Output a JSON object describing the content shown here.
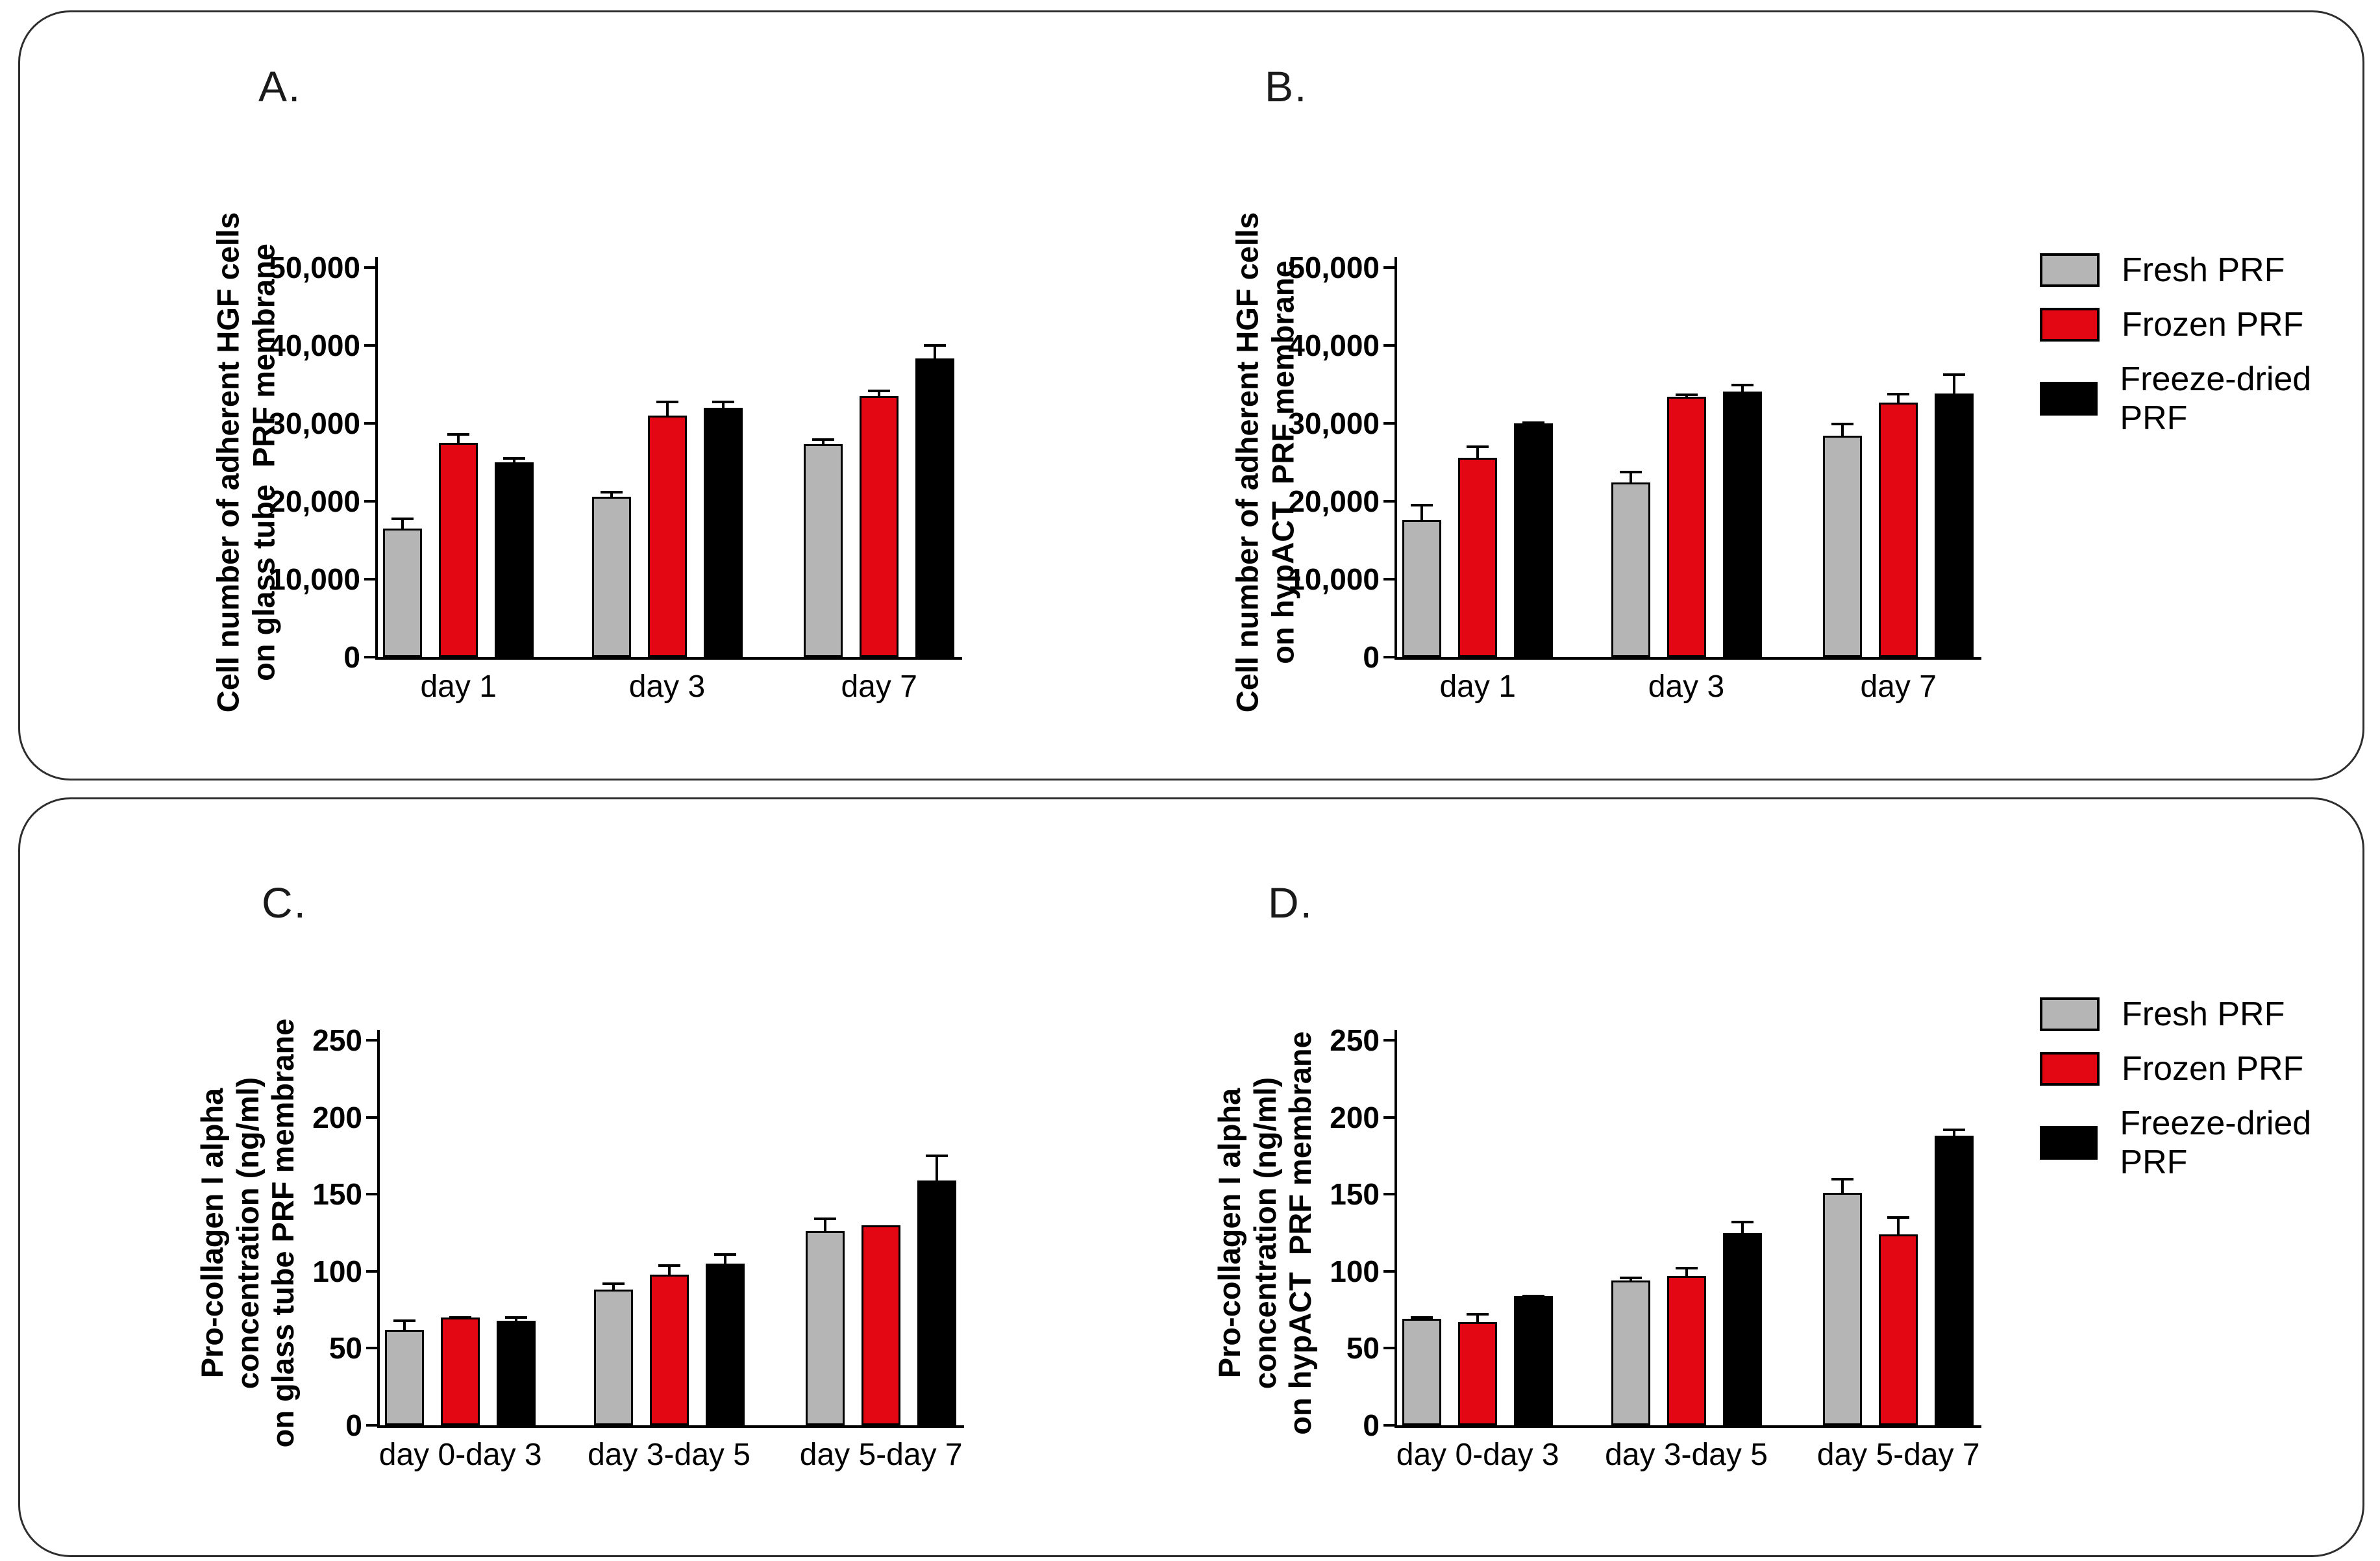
{
  "legend": {
    "items": [
      {
        "label": "Fresh PRF",
        "color": "#b5b5b5"
      },
      {
        "label": "Frozen PRF",
        "color": "#e30613"
      },
      {
        "label": "Freeze-dried PRF",
        "color": "#000000"
      }
    ]
  },
  "chart_data": [
    {
      "type": "bar",
      "panel": "A.",
      "ylabel": "Cell number of adherent HGF cells\non glass tube  PRF membrane",
      "xlabel": "",
      "ylim": [
        0,
        50000
      ],
      "grid": false,
      "legend_position": "right-of-row",
      "yticks": [
        {
          "v": 0,
          "label": "0"
        },
        {
          "v": 10000,
          "label": "10,000"
        },
        {
          "v": 20000,
          "label": "20,000"
        },
        {
          "v": 30000,
          "label": "30,000"
        },
        {
          "v": 40000,
          "label": "40,000"
        },
        {
          "v": 50000,
          "label": "50,000"
        }
      ],
      "categories": [
        "day 1",
        "day 3",
        "day 7"
      ],
      "series": [
        {
          "name": "Fresh PRF",
          "values": [
            16500,
            20600,
            27300
          ],
          "errors": [
            1700,
            1000,
            1000
          ]
        },
        {
          "name": "Frozen PRF",
          "values": [
            27500,
            31000,
            33500
          ],
          "errors": [
            1500,
            2200,
            1100
          ]
        },
        {
          "name": "Freeze-dried PRF",
          "values": [
            25000,
            32000,
            38300
          ],
          "errors": [
            900,
            1200,
            2100
          ]
        }
      ]
    },
    {
      "type": "bar",
      "panel": "B.",
      "ylabel": "Cell number of adherent HGF cells\non hypACT  PRF membrane",
      "xlabel": "",
      "ylim": [
        0,
        50000
      ],
      "grid": false,
      "legend_position": "right",
      "yticks": [
        {
          "v": 0,
          "label": "0"
        },
        {
          "v": 10000,
          "label": "10,000"
        },
        {
          "v": 20000,
          "label": "20,000"
        },
        {
          "v": 30000,
          "label": "30,000"
        },
        {
          "v": 40000,
          "label": "40,000"
        },
        {
          "v": 50000,
          "label": "50,000"
        }
      ],
      "categories": [
        "day 1",
        "day 3",
        "day 7"
      ],
      "series": [
        {
          "name": "Fresh PRF",
          "values": [
            17600,
            22400,
            28400
          ],
          "errors": [
            2300,
            1800,
            1900
          ]
        },
        {
          "name": "Frozen PRF",
          "values": [
            25600,
            33400,
            32700
          ],
          "errors": [
            1800,
            700,
            1500
          ]
        },
        {
          "name": "Freeze-dried PRF",
          "values": [
            30000,
            34100,
            33800
          ],
          "errors": [
            500,
            1200,
            2900
          ]
        }
      ]
    },
    {
      "type": "bar",
      "panel": "C.",
      "ylabel": "Pro-collagen I alpha\nconcentration (ng/ml)\non glass tube PRF membrane",
      "xlabel": "",
      "ylim": [
        0,
        250
      ],
      "grid": false,
      "legend_position": "right-of-row",
      "yticks": [
        {
          "v": 0,
          "label": "0"
        },
        {
          "v": 50,
          "label": "50"
        },
        {
          "v": 100,
          "label": "100"
        },
        {
          "v": 150,
          "label": "150"
        },
        {
          "v": 200,
          "label": "200"
        },
        {
          "v": 250,
          "label": "250"
        }
      ],
      "categories": [
        "day 0-day 3",
        "day 3-day 5",
        "day 5-day 7"
      ],
      "series": [
        {
          "name": "Fresh PRF",
          "values": [
            62,
            88,
            126
          ],
          "errors": [
            8,
            6,
            10
          ]
        },
        {
          "name": "Frozen PRF",
          "values": [
            70,
            98,
            130
          ],
          "errors": [
            2,
            8,
            0
          ]
        },
        {
          "name": "Freeze-dried PRF",
          "values": [
            68,
            105,
            159
          ],
          "errors": [
            4,
            8,
            18
          ]
        }
      ]
    },
    {
      "type": "bar",
      "panel": "D.",
      "ylabel": "Pro-collagen I alpha\nconcentration (ng/ml)\non hypACT  PRF membrane",
      "xlabel": "",
      "ylim": [
        0,
        250
      ],
      "grid": false,
      "legend_position": "right",
      "yticks": [
        {
          "v": 0,
          "label": "0"
        },
        {
          "v": 50,
          "label": "50"
        },
        {
          "v": 100,
          "label": "100"
        },
        {
          "v": 150,
          "label": "150"
        },
        {
          "v": 200,
          "label": "200"
        },
        {
          "v": 250,
          "label": "250"
        }
      ],
      "categories": [
        "day 0-day 3",
        "day 3-day 5",
        "day 5-day 7"
      ],
      "series": [
        {
          "name": "Fresh PRF",
          "values": [
            69,
            94,
            151
          ],
          "errors": [
            3,
            4,
            11
          ]
        },
        {
          "name": "Frozen PRF",
          "values": [
            67,
            97,
            124
          ],
          "errors": [
            7,
            7,
            13
          ]
        },
        {
          "name": "Freeze-dried PRF",
          "values": [
            84,
            125,
            188
          ],
          "errors": [
            2,
            9,
            6
          ]
        }
      ]
    }
  ]
}
